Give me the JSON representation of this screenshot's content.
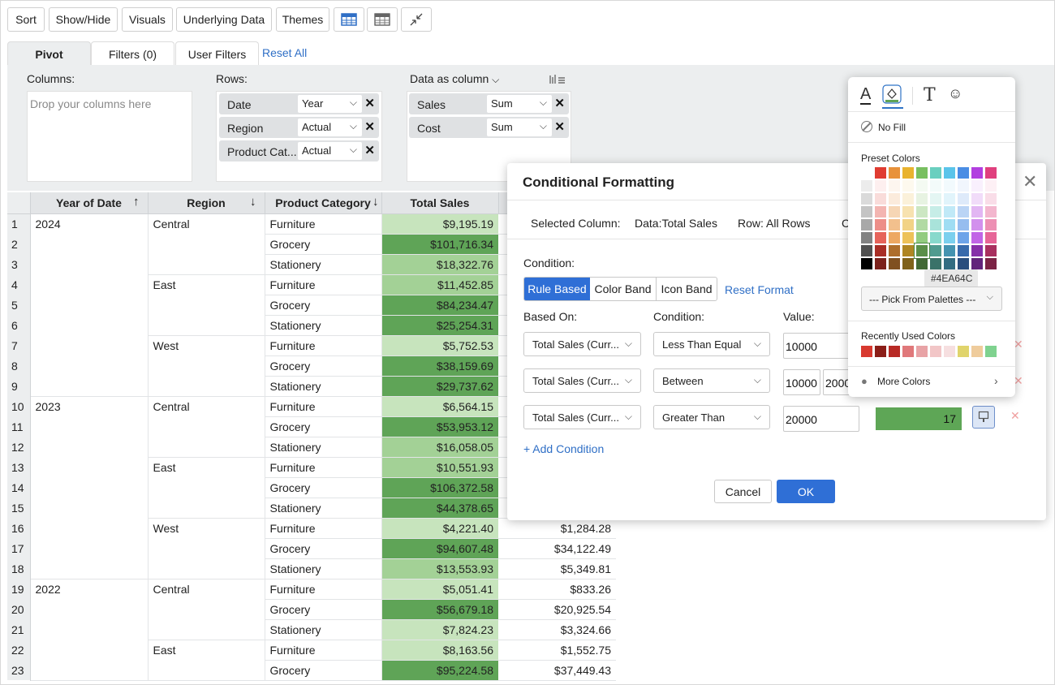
{
  "toolbar": {
    "sort": "Sort",
    "show_hide": "Show/Hide",
    "visuals": "Visuals",
    "underlying_data": "Underlying Data",
    "themes": "Themes"
  },
  "tabs": {
    "pivot": "Pivot",
    "filters": "Filters  (0)",
    "user_filters": "User Filters",
    "reset_all": "Reset All"
  },
  "panel": {
    "columns_label": "Columns:",
    "columns_placeholder": "Drop your columns here",
    "rows_label": "Rows:",
    "rows": [
      {
        "label": "Date",
        "select": "Year"
      },
      {
        "label": "Region",
        "select": "Actual"
      },
      {
        "label": "Product Cat...",
        "select": "Actual"
      }
    ],
    "data_label": "Data as column",
    "data": [
      {
        "label": "Sales",
        "select": "Sum"
      },
      {
        "label": "Cost",
        "select": "Sum"
      }
    ]
  },
  "grid": {
    "headers": {
      "year": "Year of Date",
      "region": "Region",
      "category": "Product Category",
      "total": "Total Sales"
    },
    "rows": [
      {
        "n": "1",
        "year": "2024",
        "region": "Central",
        "cat": "Furniture",
        "total": "$9,195.19",
        "cost": "",
        "fill": "light"
      },
      {
        "n": "2",
        "year": "",
        "region": "",
        "cat": "Grocery",
        "total": "$101,716.34",
        "cost": "",
        "fill": "dark"
      },
      {
        "n": "3",
        "year": "",
        "region": "",
        "cat": "Stationery",
        "total": "$18,322.76",
        "cost": "",
        "fill": "mid"
      },
      {
        "n": "4",
        "year": "",
        "region": "East",
        "cat": "Furniture",
        "total": "$11,452.85",
        "cost": "",
        "fill": "mid"
      },
      {
        "n": "5",
        "year": "",
        "region": "",
        "cat": "Grocery",
        "total": "$84,234.47",
        "cost": "",
        "fill": "dark"
      },
      {
        "n": "6",
        "year": "",
        "region": "",
        "cat": "Stationery",
        "total": "$25,254.31",
        "cost": "",
        "fill": "dark"
      },
      {
        "n": "7",
        "year": "",
        "region": "West",
        "cat": "Furniture",
        "total": "$5,752.53",
        "cost": "",
        "fill": "light"
      },
      {
        "n": "8",
        "year": "",
        "region": "",
        "cat": "Grocery",
        "total": "$38,159.69",
        "cost": "",
        "fill": "dark"
      },
      {
        "n": "9",
        "year": "",
        "region": "",
        "cat": "Stationery",
        "total": "$29,737.62",
        "cost": "",
        "fill": "dark"
      },
      {
        "n": "10",
        "year": "2023",
        "region": "Central",
        "cat": "Furniture",
        "total": "$6,564.15",
        "cost": "",
        "fill": "light"
      },
      {
        "n": "11",
        "year": "",
        "region": "",
        "cat": "Grocery",
        "total": "$53,953.12",
        "cost": "",
        "fill": "dark"
      },
      {
        "n": "12",
        "year": "",
        "region": "",
        "cat": "Stationery",
        "total": "$16,058.05",
        "cost": "",
        "fill": "mid"
      },
      {
        "n": "13",
        "year": "",
        "region": "East",
        "cat": "Furniture",
        "total": "$10,551.93",
        "cost": "",
        "fill": "mid"
      },
      {
        "n": "14",
        "year": "",
        "region": "",
        "cat": "Grocery",
        "total": "$106,372.58",
        "cost": "",
        "fill": "dark"
      },
      {
        "n": "15",
        "year": "",
        "region": "",
        "cat": "Stationery",
        "total": "$44,378.65",
        "cost": "",
        "fill": "dark"
      },
      {
        "n": "16",
        "year": "",
        "region": "West",
        "cat": "Furniture",
        "total": "$4,221.40",
        "cost": "$1,284.28",
        "fill": "light"
      },
      {
        "n": "17",
        "year": "",
        "region": "",
        "cat": "Grocery",
        "total": "$94,607.48",
        "cost": "$34,122.49",
        "fill": "dark"
      },
      {
        "n": "18",
        "year": "",
        "region": "",
        "cat": "Stationery",
        "total": "$13,553.93",
        "cost": "$5,349.81",
        "fill": "mid"
      },
      {
        "n": "19",
        "year": "2022",
        "region": "Central",
        "cat": "Furniture",
        "total": "$5,051.41",
        "cost": "$833.26",
        "fill": "light"
      },
      {
        "n": "20",
        "year": "",
        "region": "",
        "cat": "Grocery",
        "total": "$56,679.18",
        "cost": "$20,925.54",
        "fill": "dark"
      },
      {
        "n": "21",
        "year": "",
        "region": "",
        "cat": "Stationery",
        "total": "$7,824.23",
        "cost": "$3,324.66",
        "fill": "light"
      },
      {
        "n": "22",
        "year": "",
        "region": "East",
        "cat": "Furniture",
        "total": "$8,163.56",
        "cost": "$1,552.75",
        "fill": "light"
      },
      {
        "n": "23",
        "year": "",
        "region": "",
        "cat": "Grocery",
        "total": "$95,224.58",
        "cost": "$37,449.43",
        "fill": "dark"
      }
    ],
    "fills": {
      "light": "#c7e4bd",
      "mid": "#a3d196",
      "dark": "#5fa457"
    }
  },
  "cf": {
    "title": "Conditional Formatting",
    "selected_column": "Selected Column:",
    "data": "Data:Total Sales",
    "row": "Row: All Rows",
    "cut": "C",
    "condition_label": "Condition:",
    "modes": [
      "Rule Based",
      "Color Band",
      "Icon Band"
    ],
    "reset_format": "Reset Format",
    "based_on": "Based On:",
    "condition": "Condition:",
    "value": "Value:",
    "rules": [
      {
        "based": "Total Sales (Curr...",
        "cond": "Less Than Equal",
        "value": "10000",
        "value2": ""
      },
      {
        "based": "Total Sales (Curr...",
        "cond": "Between",
        "value": "10000",
        "value2": "2000"
      },
      {
        "based": "Total Sales (Curr...",
        "cond": "Greater Than",
        "value": "20000",
        "value2": ""
      }
    ],
    "preview_value": "17",
    "add_condition": "+ Add Condition",
    "cancel": "Cancel",
    "ok": "OK"
  },
  "picker": {
    "no_fill": "No Fill",
    "preset": "Preset Colors",
    "tooltip": "#4EA64C",
    "palette_select": "--- Pick From Palettes ---",
    "recent": "Recently Used Colors",
    "more": "More Colors",
    "top_row": [
      "#ffffff",
      "#e03c31",
      "#e8923b",
      "#e9b32f",
      "#78bf60",
      "#6acfbf",
      "#5ac4ea",
      "#4a8de4",
      "#b23fe0",
      "#e0407e"
    ],
    "recent_colors": [
      "#d8392f",
      "#8b1e18",
      "#b82a25",
      "#e0787a",
      "#e8a3a6",
      "#f2c6c7",
      "#f6dfe0",
      "#e0d46c",
      "#efcc9c",
      "#7fd28f"
    ],
    "accent": "#2f73c6"
  }
}
